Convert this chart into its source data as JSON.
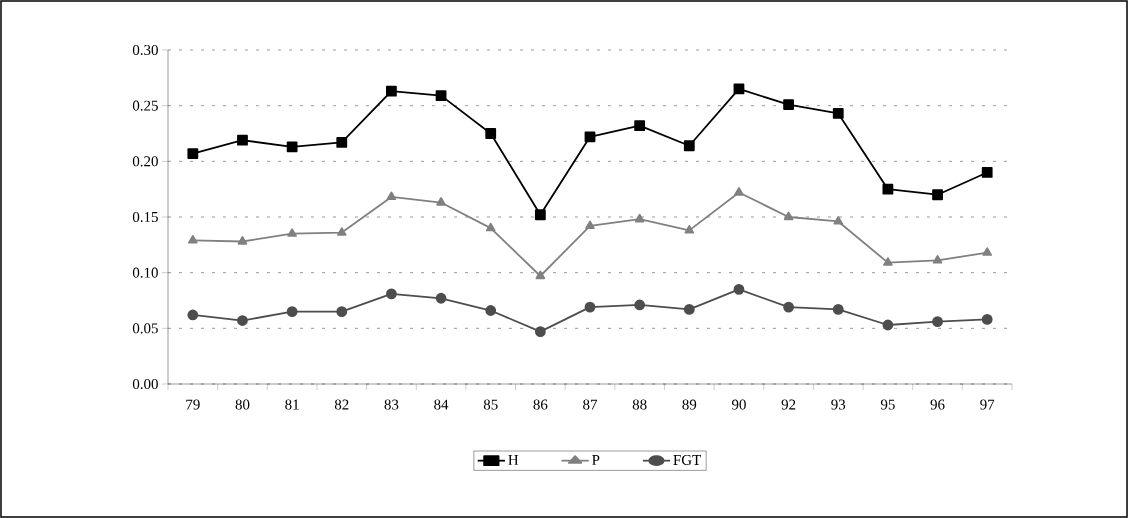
{
  "chart_data": {
    "type": "line",
    "categories": [
      "79",
      "80",
      "81",
      "82",
      "83",
      "84",
      "85",
      "86",
      "87",
      "88",
      "89",
      "90",
      "92",
      "93",
      "95",
      "96",
      "97"
    ],
    "series": [
      {
        "name": "H",
        "color": "#000000",
        "marker": "square",
        "values": [
          0.207,
          0.219,
          0.213,
          0.217,
          0.263,
          0.259,
          0.225,
          0.152,
          0.222,
          0.232,
          0.214,
          0.265,
          0.251,
          0.243,
          0.175,
          0.17,
          0.19
        ]
      },
      {
        "name": "P",
        "color": "#808080",
        "marker": "triangle",
        "values": [
          0.129,
          0.128,
          0.135,
          0.136,
          0.168,
          0.163,
          0.14,
          0.097,
          0.142,
          0.148,
          0.138,
          0.172,
          0.15,
          0.146,
          0.109,
          0.111,
          0.118
        ]
      },
      {
        "name": "FGT",
        "color": "#4d4d4d",
        "marker": "circle",
        "values": [
          0.062,
          0.057,
          0.065,
          0.065,
          0.081,
          0.077,
          0.066,
          0.047,
          0.069,
          0.071,
          0.067,
          0.085,
          0.069,
          0.067,
          0.053,
          0.056,
          0.058
        ]
      }
    ],
    "ylim": [
      0,
      0.3
    ],
    "yticks": [
      {
        "value": 0,
        "label": "0.00"
      },
      {
        "value": 0.05,
        "label": "0.05"
      },
      {
        "value": 0.1,
        "label": "0.10"
      },
      {
        "value": 0.15,
        "label": "0.15"
      },
      {
        "value": 0.2,
        "label": "0.20"
      },
      {
        "value": 0.25,
        "label": "0.25"
      },
      {
        "value": 0.3,
        "label": "0.30"
      }
    ],
    "grid": "y",
    "legend": "bottom"
  }
}
